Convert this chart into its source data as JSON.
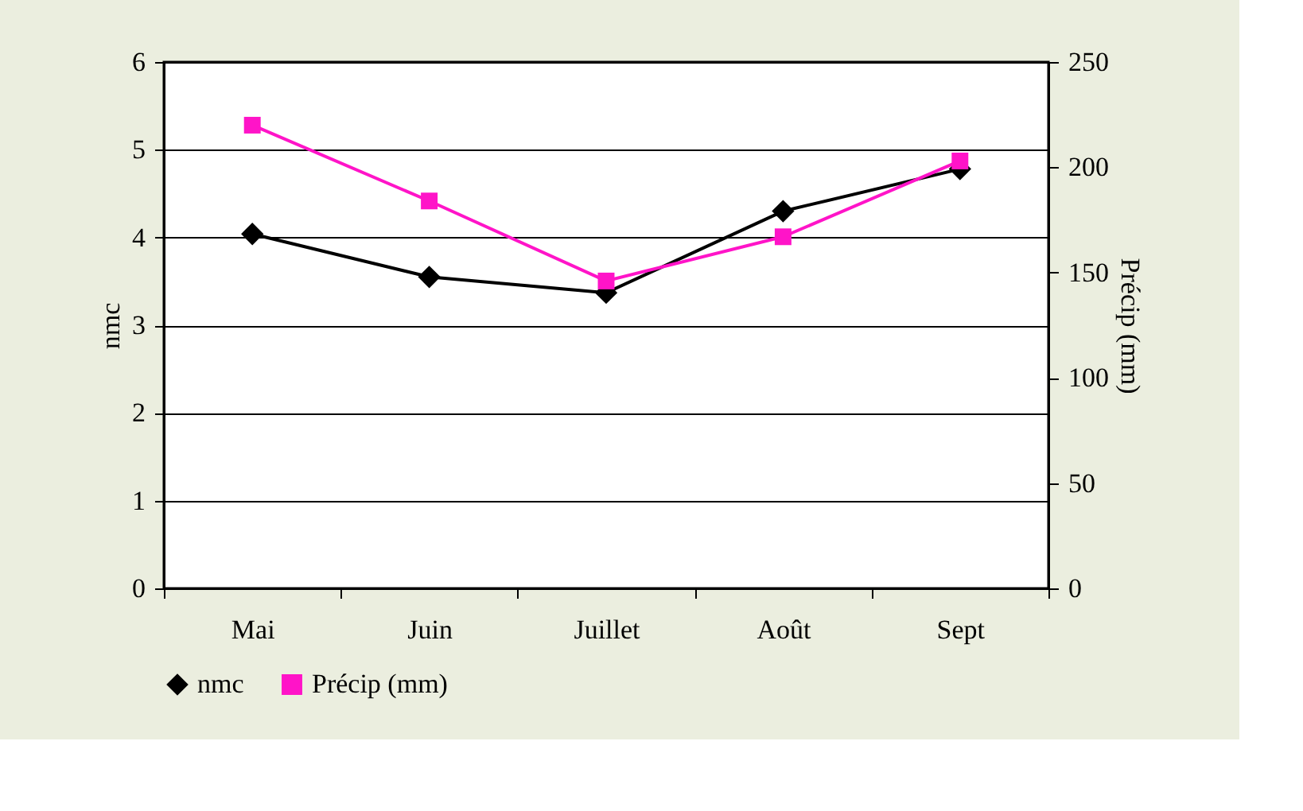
{
  "chart_data": {
    "type": "line",
    "xlabel": null,
    "ylabel": "nmc",
    "y2label": "Précip (mm)",
    "categories": [
      "Mai",
      "Juin",
      "Juillet",
      "Août",
      "Sept"
    ],
    "series": [
      {
        "name": "nmc",
        "color": "#000000",
        "marker": "diamond",
        "values": [
          4.04,
          3.55,
          3.37,
          4.3,
          4.78
        ]
      },
      {
        "name": "Précip (mm)",
        "color": "#ff14c8",
        "marker": "square",
        "axis": "y2",
        "values": [
          220,
          184,
          146,
          167,
          203
        ]
      }
    ],
    "ylim": [
      0,
      6
    ],
    "yticks": [
      0,
      1,
      2,
      3,
      4,
      5,
      6
    ],
    "y2lim": [
      0,
      250
    ],
    "y2ticks": [
      0,
      50,
      100,
      150,
      200,
      250
    ],
    "grid": "y",
    "legend": "bottom",
    "line_style": "solid"
  }
}
